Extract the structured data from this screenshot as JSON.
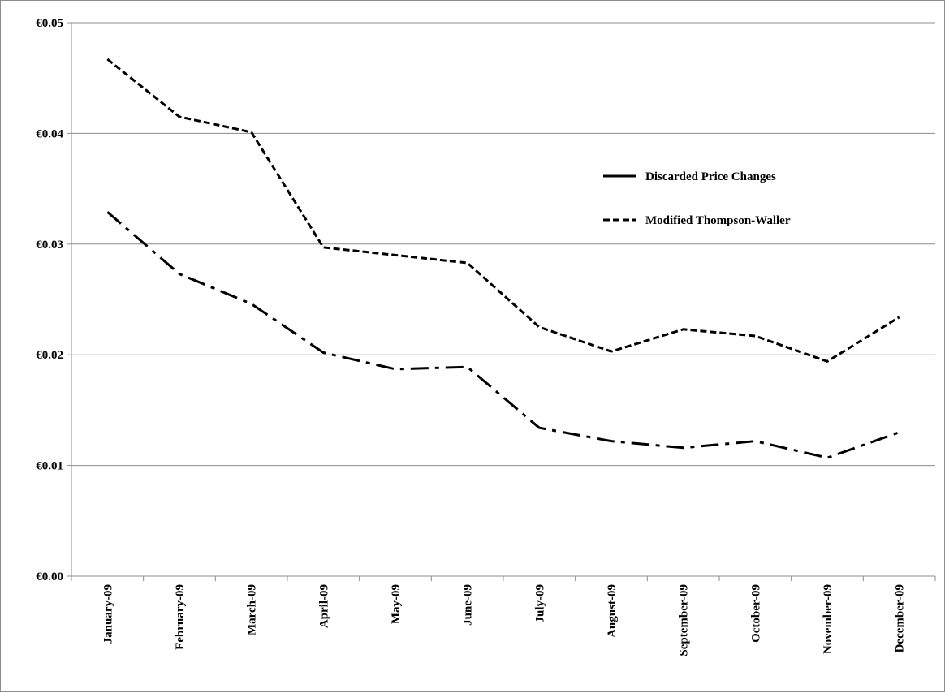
{
  "chart_data": {
    "type": "line",
    "title": "",
    "xlabel": "",
    "ylabel": "",
    "categories": [
      "January-09",
      "February-09",
      "March-09",
      "April-09",
      "May-09",
      "June-09",
      "July-09",
      "August-09",
      "September-09",
      "October-09",
      "November-09",
      "December-09"
    ],
    "y_ticks": [
      "€0.00",
      "€0.01",
      "€0.02",
      "€0.03",
      "€0.04",
      "€0.05"
    ],
    "ylim": [
      0,
      0.05
    ],
    "grid": "horizontal",
    "legend_position": "upper-right",
    "series": [
      {
        "name": "Discarded Price Changes",
        "style": "dash-dot",
        "values": [
          0.0329,
          0.0273,
          0.0246,
          0.0202,
          0.0187,
          0.0189,
          0.0134,
          0.0122,
          0.0116,
          0.0122,
          0.0107,
          0.013
        ]
      },
      {
        "name": "Modified Thompson-Waller",
        "style": "dashed",
        "values": [
          0.0467,
          0.0415,
          0.0401,
          0.0297,
          0.029,
          0.0283,
          0.0225,
          0.0203,
          0.0223,
          0.0217,
          0.0194,
          0.0234
        ]
      }
    ]
  },
  "colors": {
    "line": "#000000",
    "grid": "#8c8c8c",
    "axis": "#8c8c8c"
  }
}
